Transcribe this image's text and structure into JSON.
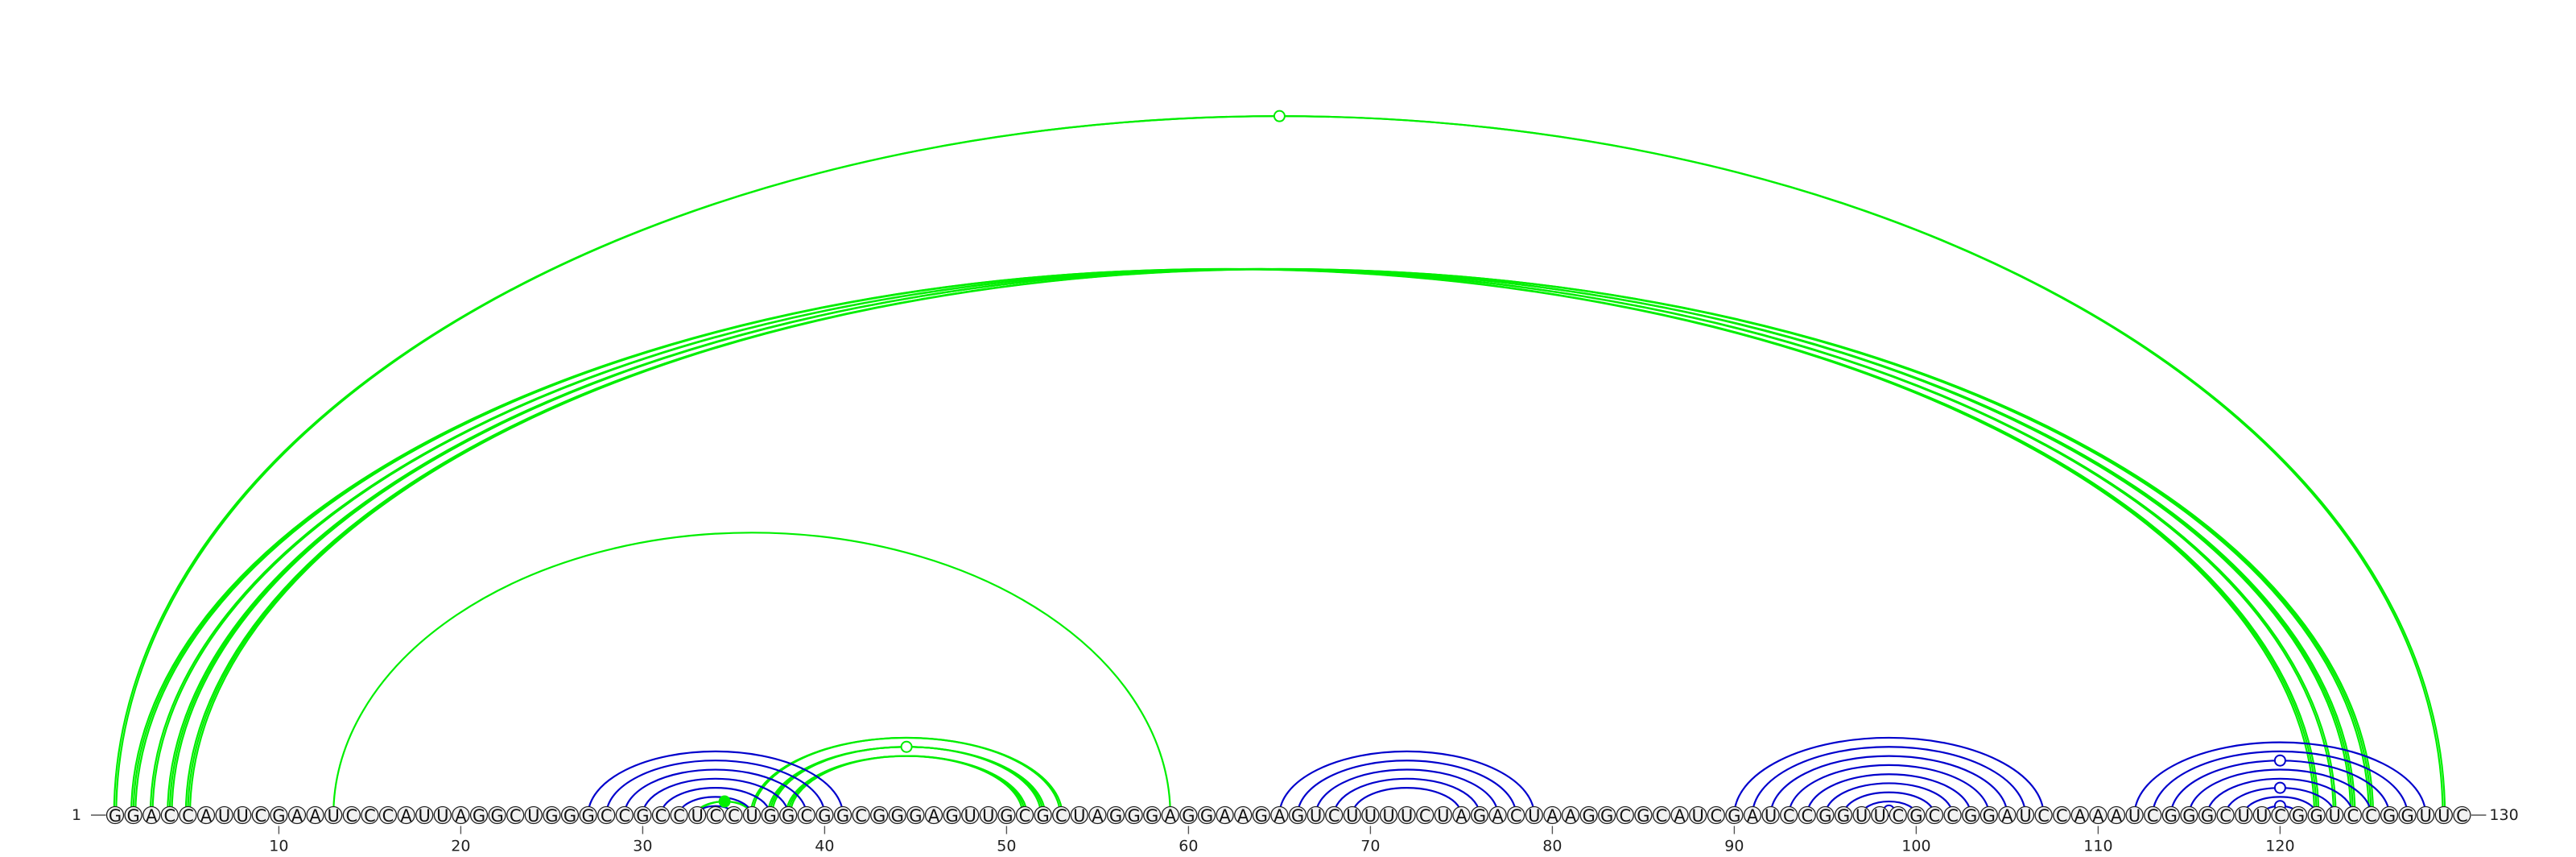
{
  "sequence": "GGACCAUUCGAAUCCCAUUAGGCUGGGCCGCCUCCUGGCGGCGGGAGUUGCGCUAGGGAGGAAGAGUCUUUUCUAGACUAAGGCGCAUCGAUCCGGUUCGCCGGAUCCAAAUCGGGCUUCGGUCCGGUUC",
  "start_label": "1",
  "end_label": "130",
  "ticks": [
    {
      "pos": 10,
      "label": "10"
    },
    {
      "pos": 20,
      "label": "20"
    },
    {
      "pos": 30,
      "label": "30"
    },
    {
      "pos": 40,
      "label": "40"
    },
    {
      "pos": 50,
      "label": "50"
    },
    {
      "pos": 60,
      "label": "60"
    },
    {
      "pos": 70,
      "label": "70"
    },
    {
      "pos": 80,
      "label": "80"
    },
    {
      "pos": 90,
      "label": "90"
    },
    {
      "pos": 100,
      "label": "100"
    },
    {
      "pos": 110,
      "label": "110"
    },
    {
      "pos": 120,
      "label": "120"
    }
  ],
  "colors": {
    "green": "#00ee00",
    "blue": "#0000cc"
  },
  "arcs": [
    {
      "i": 1,
      "j": 129,
      "color": "green",
      "strands": 2
    },
    {
      "i": 2,
      "j": 122,
      "color": "green",
      "strands": 3
    },
    {
      "i": 3,
      "j": 123,
      "color": "green",
      "strands": 2
    },
    {
      "i": 4,
      "j": 124,
      "color": "green",
      "strands": 3
    },
    {
      "i": 5,
      "j": 125,
      "color": "green",
      "strands": 3
    },
    {
      "i": 13,
      "j": 59,
      "color": "green",
      "strands": 1
    },
    {
      "i": 36,
      "j": 53,
      "color": "green",
      "strands": 2
    },
    {
      "i": 37,
      "j": 52,
      "color": "green",
      "strands": 3
    },
    {
      "i": 38,
      "j": 51,
      "color": "green",
      "strands": 3
    },
    {
      "i": 33,
      "j": 36,
      "color": "green",
      "strands": 2
    },
    {
      "i": 27,
      "j": 41,
      "color": "blue",
      "strands": 1
    },
    {
      "i": 28,
      "j": 40,
      "color": "blue",
      "strands": 1
    },
    {
      "i": 29,
      "j": 39,
      "color": "blue",
      "strands": 1
    },
    {
      "i": 30,
      "j": 38,
      "color": "blue",
      "strands": 1
    },
    {
      "i": 31,
      "j": 37,
      "color": "blue",
      "strands": 1
    },
    {
      "i": 32,
      "j": 36,
      "color": "blue",
      "strands": 1
    },
    {
      "i": 33,
      "j": 35,
      "color": "blue",
      "strands": 1
    },
    {
      "i": 65,
      "j": 79,
      "color": "blue",
      "strands": 1
    },
    {
      "i": 66,
      "j": 78,
      "color": "blue",
      "strands": 1
    },
    {
      "i": 67,
      "j": 77,
      "color": "blue",
      "strands": 1
    },
    {
      "i": 68,
      "j": 76,
      "color": "blue",
      "strands": 1
    },
    {
      "i": 69,
      "j": 75,
      "color": "blue",
      "strands": 1
    },
    {
      "i": 90,
      "j": 107,
      "color": "blue",
      "strands": 1
    },
    {
      "i": 91,
      "j": 106,
      "color": "blue",
      "strands": 1
    },
    {
      "i": 92,
      "j": 105,
      "color": "blue",
      "strands": 1
    },
    {
      "i": 93,
      "j": 104,
      "color": "blue",
      "strands": 1
    },
    {
      "i": 94,
      "j": 103,
      "color": "blue",
      "strands": 1
    },
    {
      "i": 95,
      "j": 102,
      "color": "blue",
      "strands": 1
    },
    {
      "i": 96,
      "j": 101,
      "color": "blue",
      "strands": 1
    },
    {
      "i": 97,
      "j": 100,
      "color": "blue",
      "strands": 1
    },
    {
      "i": 98,
      "j": 99,
      "color": "blue",
      "strands": 1
    },
    {
      "i": 112,
      "j": 128,
      "color": "blue",
      "strands": 1
    },
    {
      "i": 113,
      "j": 127,
      "color": "blue",
      "strands": 1
    },
    {
      "i": 114,
      "j": 126,
      "color": "blue",
      "strands": 1
    },
    {
      "i": 115,
      "j": 125,
      "color": "blue",
      "strands": 1
    },
    {
      "i": 116,
      "j": 124,
      "color": "blue",
      "strands": 1
    },
    {
      "i": 117,
      "j": 123,
      "color": "blue",
      "strands": 1
    },
    {
      "i": 118,
      "j": 122,
      "color": "blue",
      "strands": 1
    },
    {
      "i": 119,
      "j": 121,
      "color": "blue",
      "strands": 1
    }
  ],
  "markers": [
    {
      "arc": 0,
      "color": "green",
      "filled": false
    },
    {
      "arc": 7,
      "color": "green",
      "filled": false
    },
    {
      "arc": 9,
      "color": "green",
      "filled": true
    },
    {
      "arc": 30,
      "color": "blue",
      "filled": false
    },
    {
      "arc": 33,
      "color": "blue",
      "filled": false
    },
    {
      "arc": 36,
      "color": "blue",
      "filled": false
    },
    {
      "arc": 38,
      "color": "blue",
      "filled": false
    }
  ]
}
